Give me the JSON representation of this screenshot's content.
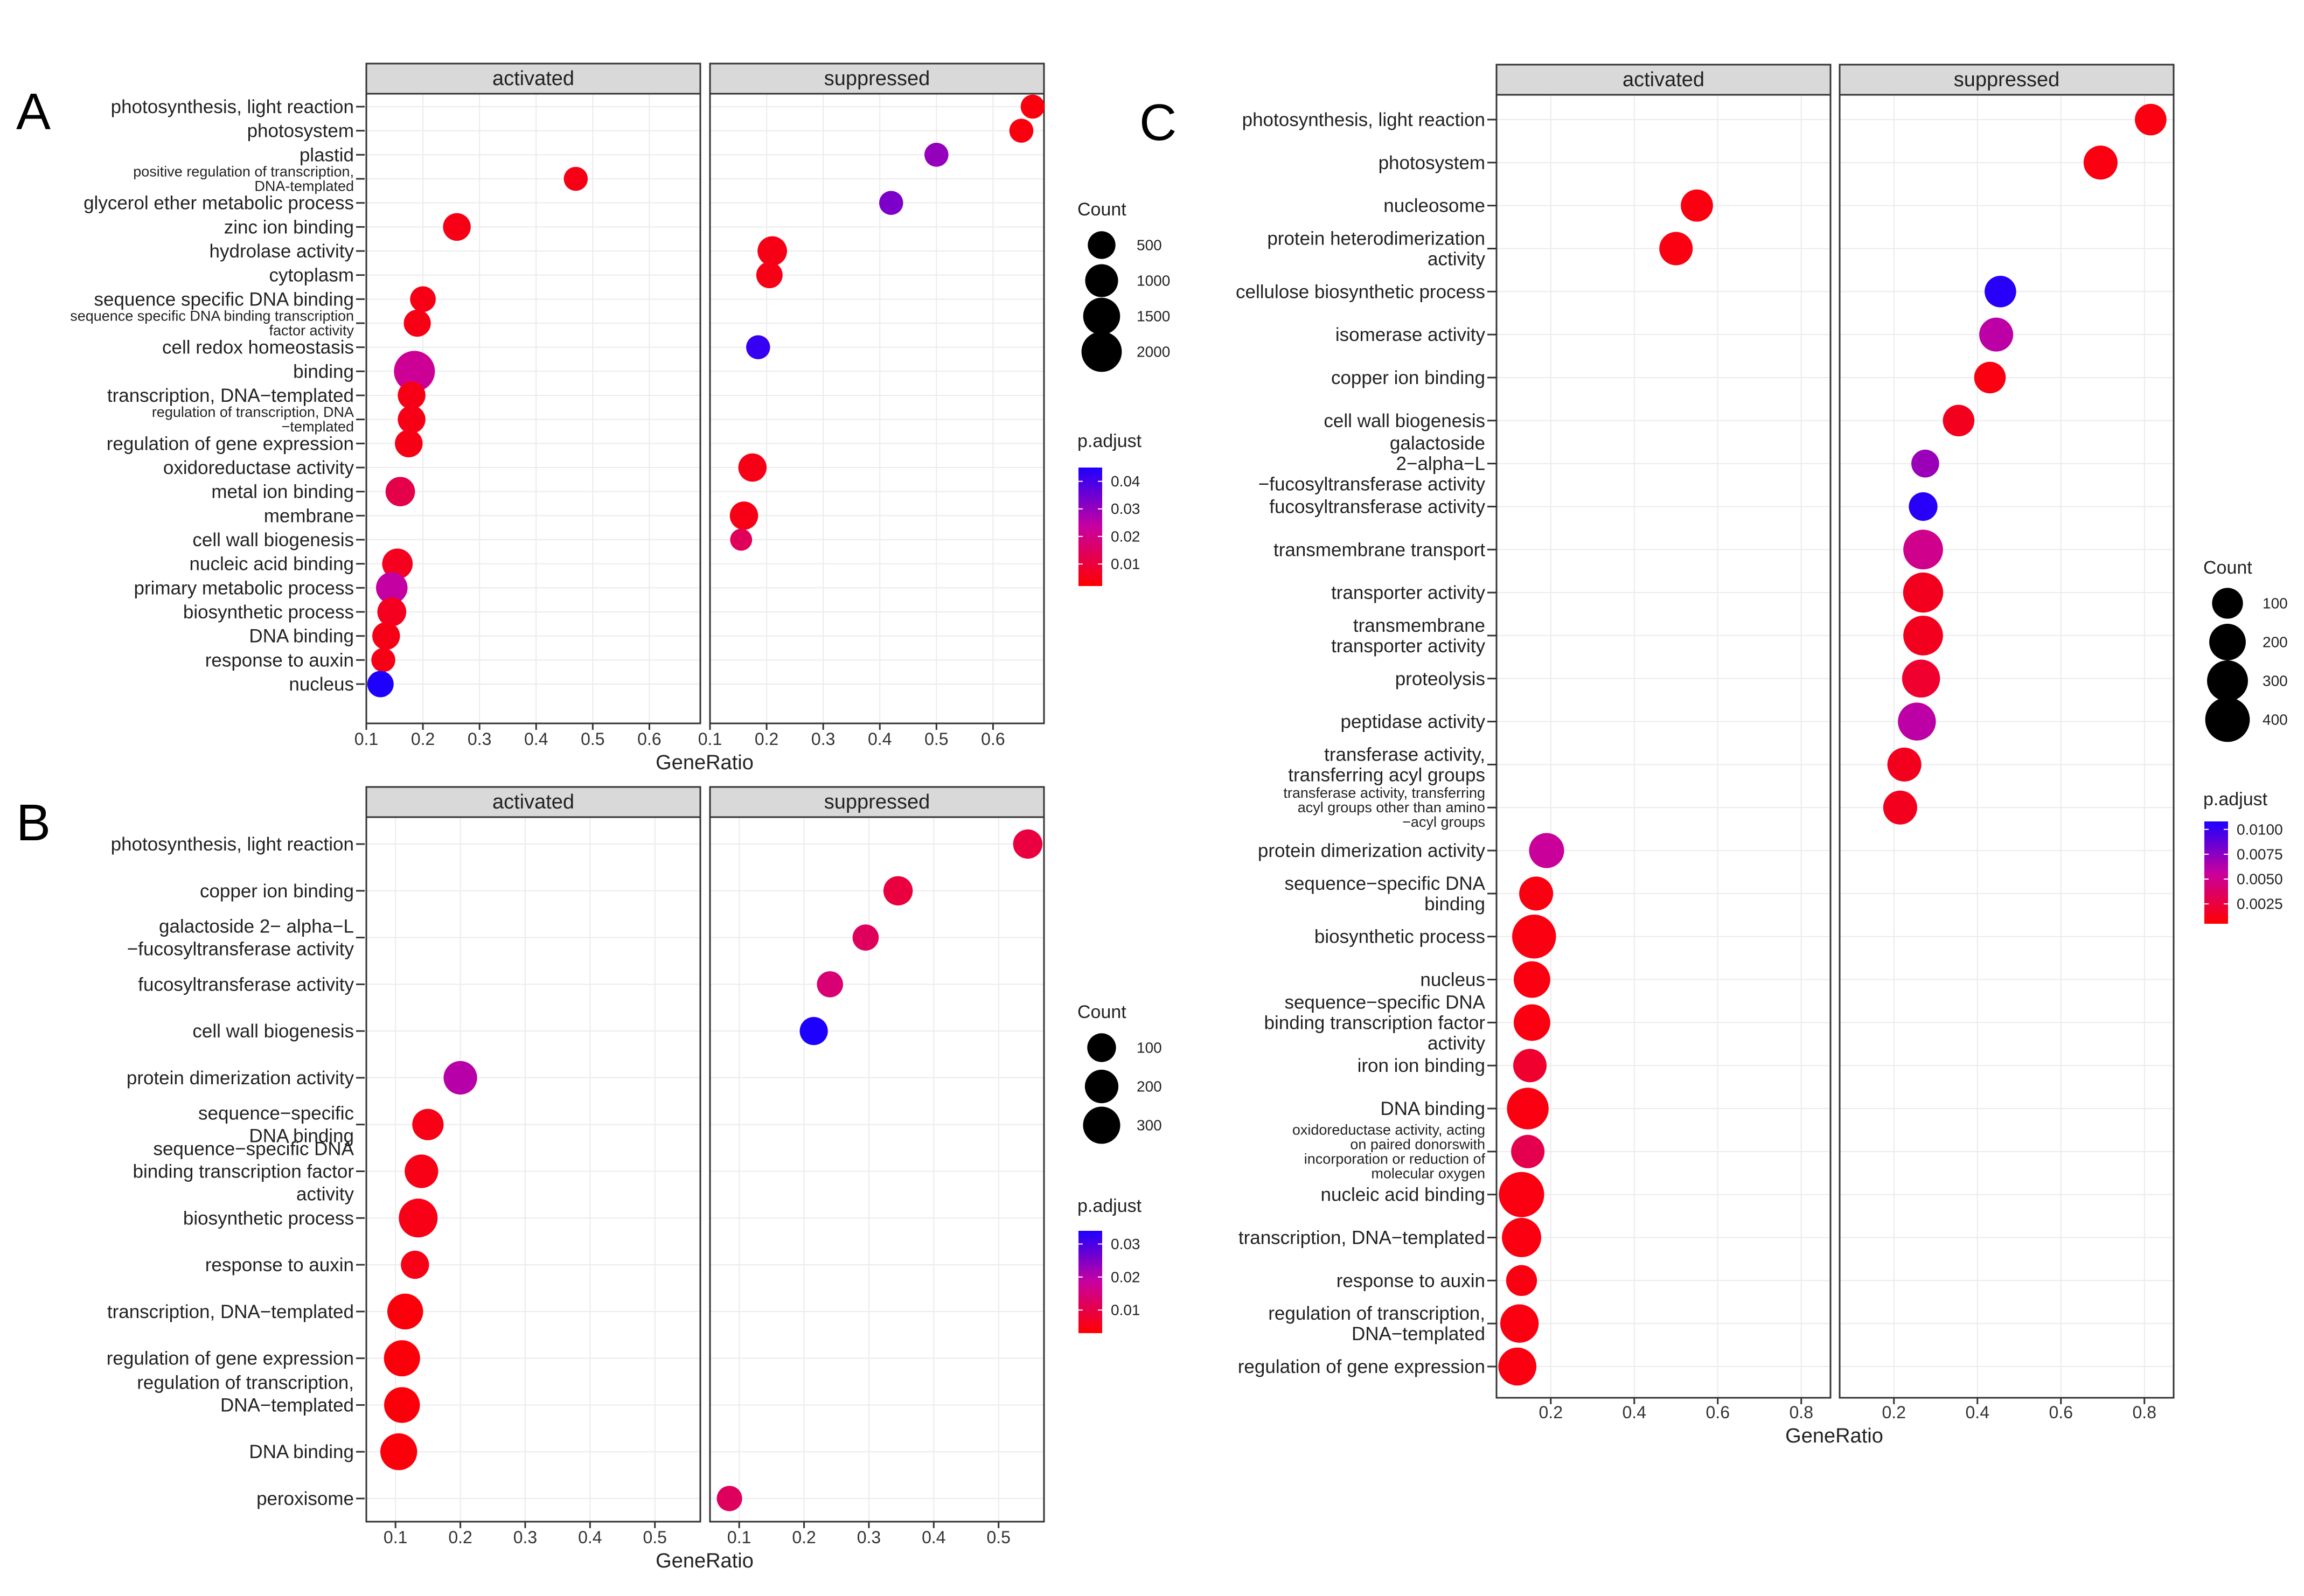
{
  "chart_data": [
    {
      "panel": "A",
      "type": "scatter",
      "facets": [
        "activated",
        "suppressed"
      ],
      "xlabel": "GeneRatio",
      "ylabel": "",
      "legend": {
        "size_title": "Count",
        "size_values": [
          500,
          1000,
          1500,
          2000
        ],
        "color_title": "p.adjust",
        "color_ticks": [
          0.04,
          0.03,
          0.02,
          0.01
        ],
        "color_range": [
          0.002,
          0.045
        ],
        "position": "right"
      },
      "terms": [
        "photosynthesis, light reaction",
        "photosystem",
        "plastid",
        "positive regulation of transcription,\nDNA-templated",
        "glycerol ether metabolic process",
        "zinc ion binding",
        "hydrolase activity",
        "cytoplasm",
        "sequence specific DNA binding",
        "sequence specific DNA binding transcription\nfactor activity",
        "cell redox homeostasis",
        "binding",
        "transcription, DNA−templated",
        "regulation of transcription, DNA\n−templated",
        "regulation of gene expression",
        "oxidoreductase activity",
        "metal ion binding",
        "membrane",
        "cell wall biogenesis",
        "nucleic acid binding",
        "primary metabolic process",
        "biosynthetic process",
        "DNA binding",
        "response to auxin",
        "nucleus"
      ],
      "series": [
        {
          "name": "activated",
          "xlim": [
            0.1,
            0.69
          ],
          "xticks": [
            0.1,
            0.2,
            0.3,
            0.4,
            0.5,
            0.6
          ],
          "points": [
            {
              "term": "positive regulation of transcription,\nDNA-templated",
              "x": 0.47,
              "count": 250,
              "p": 0.005
            },
            {
              "term": "zinc ion binding",
              "x": 0.26,
              "count": 500,
              "p": 0.005
            },
            {
              "term": "sequence specific DNA binding",
              "x": 0.2,
              "count": 350,
              "p": 0.005
            },
            {
              "term": "sequence specific DNA binding transcription\nfactor activity",
              "x": 0.19,
              "count": 450,
              "p": 0.005
            },
            {
              "term": "binding",
              "x": 0.185,
              "count": 2100,
              "p": 0.022
            },
            {
              "term": "transcription, DNA−templated",
              "x": 0.18,
              "count": 500,
              "p": 0.005
            },
            {
              "term": "regulation of transcription, DNA\n−templated",
              "x": 0.18,
              "count": 500,
              "p": 0.005
            },
            {
              "term": "regulation of gene expression",
              "x": 0.175,
              "count": 500,
              "p": 0.005
            },
            {
              "term": "metal ion binding",
              "x": 0.16,
              "count": 650,
              "p": 0.012
            },
            {
              "term": "nucleic acid binding",
              "x": 0.155,
              "count": 750,
              "p": 0.006
            },
            {
              "term": "primary metabolic process",
              "x": 0.145,
              "count": 850,
              "p": 0.024
            },
            {
              "term": "biosynthetic process",
              "x": 0.145,
              "count": 600,
              "p": 0.006
            },
            {
              "term": "DNA binding",
              "x": 0.135,
              "count": 500,
              "p": 0.005
            },
            {
              "term": "response to auxin",
              "x": 0.13,
              "count": 250,
              "p": 0.005
            },
            {
              "term": "nucleus",
              "x": 0.125,
              "count": 400,
              "p": 0.045
            }
          ]
        },
        {
          "name": "suppressed",
          "xlim": [
            0.1,
            0.69
          ],
          "xticks": [
            0.1,
            0.2,
            0.3,
            0.4,
            0.5,
            0.6
          ],
          "points": [
            {
              "term": "photosynthesis, light reaction",
              "x": 0.67,
              "count": 250,
              "p": 0.004
            },
            {
              "term": "photosystem",
              "x": 0.65,
              "count": 250,
              "p": 0.004
            },
            {
              "term": "plastid",
              "x": 0.5,
              "count": 250,
              "p": 0.03
            },
            {
              "term": "glycerol ether metabolic process",
              "x": 0.42,
              "count": 250,
              "p": 0.033
            },
            {
              "term": "hydrolase activity",
              "x": 0.21,
              "count": 650,
              "p": 0.005
            },
            {
              "term": "cytoplasm",
              "x": 0.205,
              "count": 400,
              "p": 0.005
            },
            {
              "term": "cell redox homeostasis",
              "x": 0.185,
              "count": 250,
              "p": 0.042
            },
            {
              "term": "oxidoreductase activity",
              "x": 0.175,
              "count": 550,
              "p": 0.005
            },
            {
              "term": "membrane",
              "x": 0.16,
              "count": 550,
              "p": 0.005
            },
            {
              "term": "cell wall biogenesis",
              "x": 0.155,
              "count": 150,
              "p": 0.014
            }
          ]
        }
      ]
    },
    {
      "panel": "B",
      "type": "scatter",
      "facets": [
        "activated",
        "suppressed"
      ],
      "xlabel": "GeneRatio",
      "ylabel": "",
      "legend": {
        "size_title": "Count",
        "size_values": [
          100,
          200,
          300
        ],
        "color_title": "p.adjust",
        "color_ticks": [
          0.03,
          0.02,
          0.01
        ],
        "color_range": [
          0.003,
          0.034
        ],
        "position": "right"
      },
      "terms": [
        "photosynthesis, light reaction",
        "copper ion binding",
        "galactoside 2− alpha−L\n−fucosyltransferase activity",
        "fucosyltransferase activity",
        "cell wall biogenesis",
        "protein dimerization activity",
        "sequence−specific\nDNA binding",
        "sequence−specific DNA\nbinding transcription factor\nactivity",
        "biosynthetic process",
        "response to auxin",
        "transcription, DNA−templated",
        "regulation of gene expression",
        "regulation of transcription,\n\nDNA−templated",
        "DNA binding",
        "peroxisome"
      ],
      "series": [
        {
          "name": "activated",
          "xlim": [
            0.055,
            0.57
          ],
          "xticks": [
            0.1,
            0.2,
            0.3,
            0.4,
            0.5
          ],
          "points": [
            {
              "term": "protein dimerization activity",
              "x": 0.2,
              "count": 200,
              "p": 0.02
            },
            {
              "term": "sequence−specific\nDNA binding",
              "x": 0.15,
              "count": 150,
              "p": 0.005
            },
            {
              "term": "sequence−specific DNA\nbinding transcription factor\nactivity",
              "x": 0.14,
              "count": 200,
              "p": 0.005
            },
            {
              "term": "biosynthetic process",
              "x": 0.135,
              "count": 350,
              "p": 0.005
            },
            {
              "term": "response to auxin",
              "x": 0.13,
              "count": 90,
              "p": 0.005
            },
            {
              "term": "transcription, DNA−templated",
              "x": 0.115,
              "count": 260,
              "p": 0.004
            },
            {
              "term": "regulation of gene expression",
              "x": 0.11,
              "count": 270,
              "p": 0.004
            },
            {
              "term": "regulation of transcription,\n\nDNA−templated",
              "x": 0.11,
              "count": 260,
              "p": 0.004
            },
            {
              "term": "DNA binding",
              "x": 0.105,
              "count": 290,
              "p": 0.004
            }
          ]
        },
        {
          "name": "suppressed",
          "xlim": [
            0.055,
            0.57
          ],
          "xticks": [
            0.1,
            0.2,
            0.3,
            0.4,
            0.5
          ],
          "points": [
            {
              "term": "photosynthesis, light reaction",
              "x": 0.545,
              "count": 110,
              "p": 0.009
            },
            {
              "term": "copper ion binding",
              "x": 0.345,
              "count": 110,
              "p": 0.009
            },
            {
              "term": "galactoside 2− alpha−L\n−fucosyltransferase activity",
              "x": 0.295,
              "count": 60,
              "p": 0.012
            },
            {
              "term": "fucosyltransferase activity",
              "x": 0.24,
              "count": 60,
              "p": 0.014
            },
            {
              "term": "cell wall biogenesis",
              "x": 0.215,
              "count": 90,
              "p": 0.034
            },
            {
              "term": "peroxisome",
              "x": 0.085,
              "count": 50,
              "p": 0.012
            }
          ]
        }
      ]
    },
    {
      "panel": "C",
      "type": "scatter",
      "facets": [
        "activated",
        "suppressed"
      ],
      "xlabel": "GeneRatio",
      "ylabel": "",
      "legend": {
        "size_title": "Count",
        "size_values": [
          100,
          200,
          300,
          400
        ],
        "color_title": "p.adjust",
        "color_ticks": [
          0.01,
          0.0075,
          0.005,
          0.0025
        ],
        "color_range": [
          0.0005,
          0.0108
        ],
        "color_tick_labels": [
          "0.0100",
          "0.0075",
          "0.0050",
          "0.0025"
        ],
        "position": "right"
      },
      "terms": [
        "photosynthesis, light reaction",
        "photosystem",
        "nucleosome",
        "protein heterodimerization\nactivity",
        "cellulose biosynthetic process",
        "isomerase activity",
        "copper ion binding",
        "cell wall biogenesis",
        "galactoside\n2−alpha−L\n−fucosyltransferase activity",
        "fucosyltransferase activity",
        "transmembrane transport",
        "transporter activity",
        "transmembrane\ntransporter activity",
        "proteolysis",
        "peptidase activity",
        "transferase activity,\ntransferring acyl groups",
        "transferase activity, transferring\nacyl groups other than amino\n−acyl groups",
        "protein dimerization activity",
        "sequence−specific DNA\nbinding",
        "biosynthetic process",
        "nucleus",
        "sequence−specific DNA\nbinding transcription factor\nactivity",
        "iron ion binding",
        "DNA binding",
        "oxidoreductase activity, acting\non paired donorswith\nincorporation or reduction of\nmolecular oxygen",
        "nucleic acid binding",
        "transcription, DNA−templated",
        "response to auxin",
        "regulation of transcription,\nDNA−templated",
        "regulation of gene expression"
      ],
      "series": [
        {
          "name": "activated",
          "xlim": [
            0.07,
            0.87
          ],
          "xticks": [
            0.2,
            0.4,
            0.6,
            0.8
          ],
          "points": [
            {
              "term": "nucleosome",
              "x": 0.55,
              "count": 120,
              "p": 0.001
            },
            {
              "term": "protein heterodimerization\nactivity",
              "x": 0.5,
              "count": 140,
              "p": 0.001
            },
            {
              "term": "protein dimerization activity",
              "x": 0.19,
              "count": 170,
              "p": 0.0055
            },
            {
              "term": "sequence−specific DNA\nbinding",
              "x": 0.165,
              "count": 150,
              "p": 0.001
            },
            {
              "term": "biosynthetic process",
              "x": 0.16,
              "count": 380,
              "p": 0.001
            },
            {
              "term": "nucleus",
              "x": 0.155,
              "count": 200,
              "p": 0.001
            },
            {
              "term": "sequence−specific DNA\nbinding transcription factor\nactivity",
              "x": 0.155,
              "count": 200,
              "p": 0.001
            },
            {
              "term": "iron ion binding",
              "x": 0.15,
              "count": 140,
              "p": 0.002
            },
            {
              "term": "DNA binding",
              "x": 0.145,
              "count": 320,
              "p": 0.001
            },
            {
              "term": "oxidoreductase activity, acting\non paired donorswith\nincorporation or reduction of\nmolecular oxygen",
              "x": 0.145,
              "count": 140,
              "p": 0.003
            },
            {
              "term": "nucleic acid binding",
              "x": 0.13,
              "count": 420,
              "p": 0.001
            },
            {
              "term": "transcription, DNA−templated",
              "x": 0.13,
              "count": 260,
              "p": 0.001
            },
            {
              "term": "response to auxin",
              "x": 0.13,
              "count": 100,
              "p": 0.001
            },
            {
              "term": "regulation of transcription,\nDNA−templated",
              "x": 0.125,
              "count": 240,
              "p": 0.001
            },
            {
              "term": "regulation of gene expression",
              "x": 0.12,
              "count": 230,
              "p": 0.001
            }
          ]
        },
        {
          "name": "suppressed",
          "xlim": [
            0.07,
            0.87
          ],
          "xticks": [
            0.2,
            0.4,
            0.6,
            0.8
          ],
          "points": [
            {
              "term": "photosynthesis, light reaction",
              "x": 0.815,
              "count": 110,
              "p": 0.001
            },
            {
              "term": "photosystem",
              "x": 0.695,
              "count": 150,
              "p": 0.001
            },
            {
              "term": "cellulose biosynthetic process",
              "x": 0.455,
              "count": 110,
              "p": 0.0105
            },
            {
              "term": "isomerase activity",
              "x": 0.445,
              "count": 150,
              "p": 0.006
            },
            {
              "term": "copper ion binding",
              "x": 0.43,
              "count": 110,
              "p": 0.001
            },
            {
              "term": "cell wall biogenesis",
              "x": 0.355,
              "count": 110,
              "p": 0.0015
            },
            {
              "term": "galactoside\n2−alpha−L\n−fucosyltransferase activity",
              "x": 0.275,
              "count": 60,
              "p": 0.007
            },
            {
              "term": "fucosyltransferase activity",
              "x": 0.27,
              "count": 70,
              "p": 0.0105
            },
            {
              "term": "transmembrane transport",
              "x": 0.27,
              "count": 270,
              "p": 0.005
            },
            {
              "term": "transporter activity",
              "x": 0.27,
              "count": 280,
              "p": 0.0015
            },
            {
              "term": "transmembrane\ntransporter activity",
              "x": 0.27,
              "count": 270,
              "p": 0.0015
            },
            {
              "term": "proteolysis",
              "x": 0.265,
              "count": 230,
              "p": 0.002
            },
            {
              "term": "peptidase activity",
              "x": 0.255,
              "count": 230,
              "p": 0.006
            },
            {
              "term": "transferase activity,\ntransferring acyl groups",
              "x": 0.225,
              "count": 150,
              "p": 0.0015
            },
            {
              "term": "transferase activity, transferring\nacyl groups other than amino\n−acyl groups",
              "x": 0.215,
              "count": 150,
              "p": 0.0015
            }
          ]
        }
      ]
    }
  ]
}
